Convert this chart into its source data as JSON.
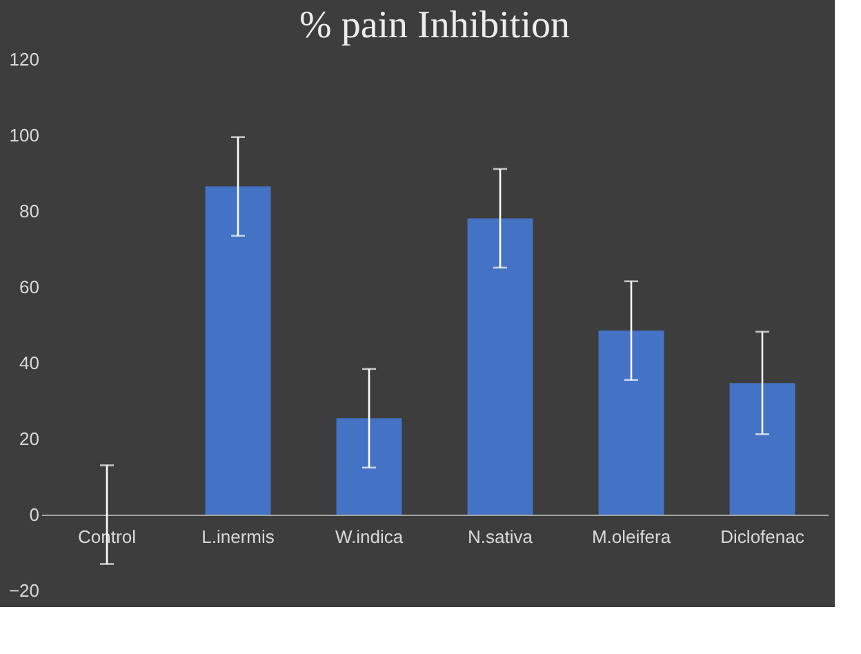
{
  "chart_data": {
    "type": "bar",
    "title": "% pain Inhibition",
    "categories": [
      "Control",
      "L.inermis",
      "W.indica",
      "N.sativa",
      "M.oleifera",
      "Diclofenac"
    ],
    "values": [
      0,
      86.5,
      25.4,
      78.1,
      48.5,
      34.7
    ],
    "errors": [
      13,
      13,
      13,
      13,
      13,
      13.5
    ],
    "color": "#4472c4",
    "ylim": [
      -20,
      120
    ],
    "yticks": [
      -20,
      0,
      20,
      40,
      60,
      80,
      100,
      120
    ],
    "grid": false
  }
}
